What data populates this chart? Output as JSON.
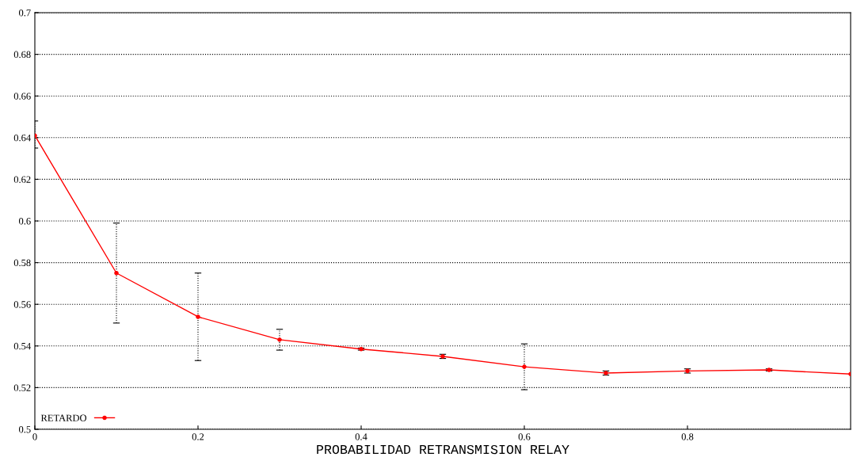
{
  "chart_data": {
    "type": "line",
    "xlabel": "PROBABILIDAD RETRANSMISION RELAY",
    "x": [
      0,
      0.1,
      0.2,
      0.3,
      0.4,
      0.5,
      0.6,
      0.7,
      0.8,
      0.9,
      1.0
    ],
    "series": [
      {
        "name": "RETARDO",
        "color": "#ff0000",
        "values": [
          0.641,
          0.575,
          0.554,
          0.543,
          0.5385,
          0.535,
          0.53,
          0.527,
          0.528,
          0.5285,
          0.5265
        ],
        "errors": [
          [
            0.635,
            0.648
          ],
          [
            0.551,
            0.599
          ],
          [
            0.533,
            0.575
          ],
          [
            0.538,
            0.548
          ],
          [
            0.538,
            0.539
          ],
          [
            0.534,
            0.536
          ],
          [
            0.519,
            0.541
          ],
          [
            0.526,
            0.528
          ],
          [
            0.527,
            0.529
          ],
          [
            0.528,
            0.529
          ],
          null
        ]
      }
    ],
    "xlim": [
      0,
      1
    ],
    "xticks": [
      0,
      0.2,
      0.4,
      0.6,
      0.8
    ],
    "ylim": [
      0.5,
      0.7
    ],
    "yticks": [
      0.5,
      0.52,
      0.54,
      0.56,
      0.58,
      0.6,
      0.62,
      0.64,
      0.66,
      0.68,
      0.7
    ],
    "grid": "y",
    "legend": "bottom left",
    "marker": "circle",
    "line_style": "solid"
  }
}
